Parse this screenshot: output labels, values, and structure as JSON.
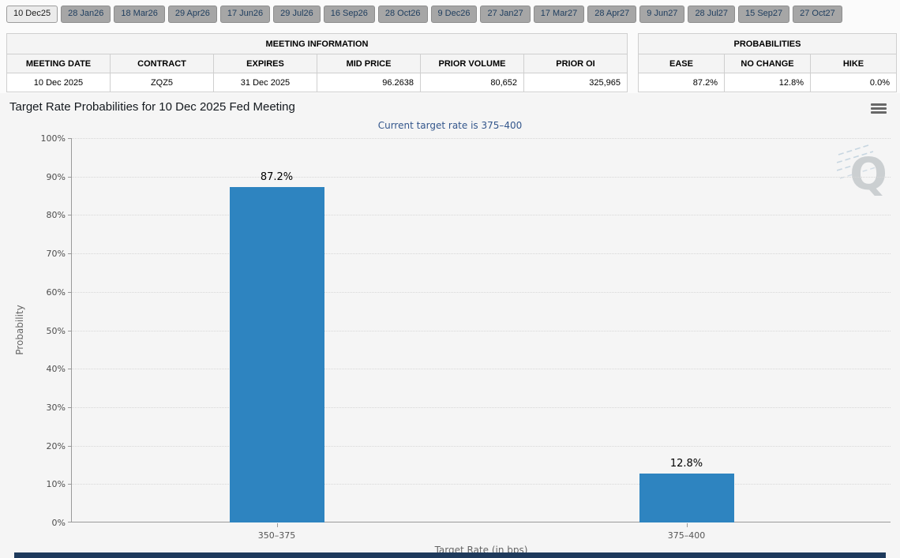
{
  "tabs": {
    "items": [
      {
        "label": "10 Dec25",
        "selected": true
      },
      {
        "label": "28 Jan26",
        "selected": false
      },
      {
        "label": "18 Mar26",
        "selected": false
      },
      {
        "label": "29 Apr26",
        "selected": false
      },
      {
        "label": "17 Jun26",
        "selected": false
      },
      {
        "label": "29 Jul26",
        "selected": false
      },
      {
        "label": "16 Sep26",
        "selected": false
      },
      {
        "label": "28 Oct26",
        "selected": false
      },
      {
        "label": "9 Dec26",
        "selected": false
      },
      {
        "label": "27 Jan27",
        "selected": false
      },
      {
        "label": "17 Mar27",
        "selected": false
      },
      {
        "label": "28 Apr27",
        "selected": false
      },
      {
        "label": "9 Jun27",
        "selected": false
      },
      {
        "label": "28 Jul27",
        "selected": false
      },
      {
        "label": "15 Sep27",
        "selected": false
      },
      {
        "label": "27 Oct27",
        "selected": false
      }
    ]
  },
  "meeting_info": {
    "title": "MEETING INFORMATION",
    "columns": [
      "MEETING DATE",
      "CONTRACT",
      "EXPIRES",
      "MID PRICE",
      "PRIOR VOLUME",
      "PRIOR OI"
    ],
    "row": [
      "10 Dec 2025",
      "ZQZ5",
      "31 Dec 2025",
      "96.2638",
      "80,652",
      "325,965"
    ]
  },
  "probabilities": {
    "title": "PROBABILITIES",
    "columns": [
      "EASE",
      "NO CHANGE",
      "HIKE"
    ],
    "row": [
      "87.2%",
      "12.8%",
      "0.0%"
    ]
  },
  "chart_data": {
    "type": "bar",
    "title": "Target Rate Probabilities for 10 Dec 2025 Fed Meeting",
    "subtitle": "Current target rate is 375–400",
    "categories": [
      "350–375",
      "375–400"
    ],
    "values": [
      87.2,
      12.8
    ],
    "value_labels": [
      "87.2%",
      "12.8%"
    ],
    "xlabel": "Target Rate (in bps)",
    "ylabel": "Probability",
    "ylim": [
      0,
      100
    ],
    "ytick_step": 10,
    "ytick_suffix": "%",
    "grid": true,
    "legend": "none",
    "bar_color": "#2e84c0",
    "watermark": "Q"
  }
}
